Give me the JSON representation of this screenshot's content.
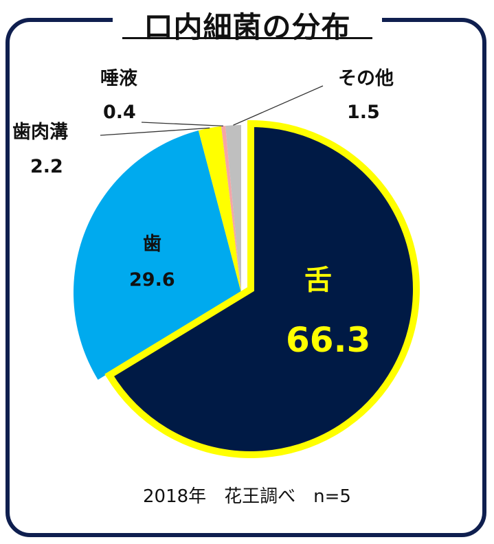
{
  "title": "口内細菌の分布",
  "footer": "2018年　花王調べ　n=5",
  "colors": {
    "frame": "#0f1f4f",
    "tongue": "#001a45",
    "tooth": "#00aaee",
    "gum_pocket": "#ffff00",
    "saliva": "#f4a6a6",
    "other": "#bfbfbf",
    "highlight": "#ffff00"
  },
  "chart_data": {
    "type": "pie",
    "title": "口内細菌の分布",
    "slices": [
      {
        "name": "舌",
        "value": 66.3,
        "value_label": "66.3",
        "color": "#001a45",
        "exploded": true
      },
      {
        "name": "歯",
        "value": 29.6,
        "value_label": "29.6",
        "color": "#00aaee"
      },
      {
        "name": "歯肉溝",
        "value": 2.2,
        "value_label": "2.2",
        "color": "#ffff00"
      },
      {
        "name": "唾液",
        "value": 0.4,
        "value_label": "0.4",
        "color": "#f4a6a6"
      },
      {
        "name": "その他",
        "value": 1.5,
        "value_label": "1.5",
        "color": "#bfbfbf"
      }
    ]
  }
}
